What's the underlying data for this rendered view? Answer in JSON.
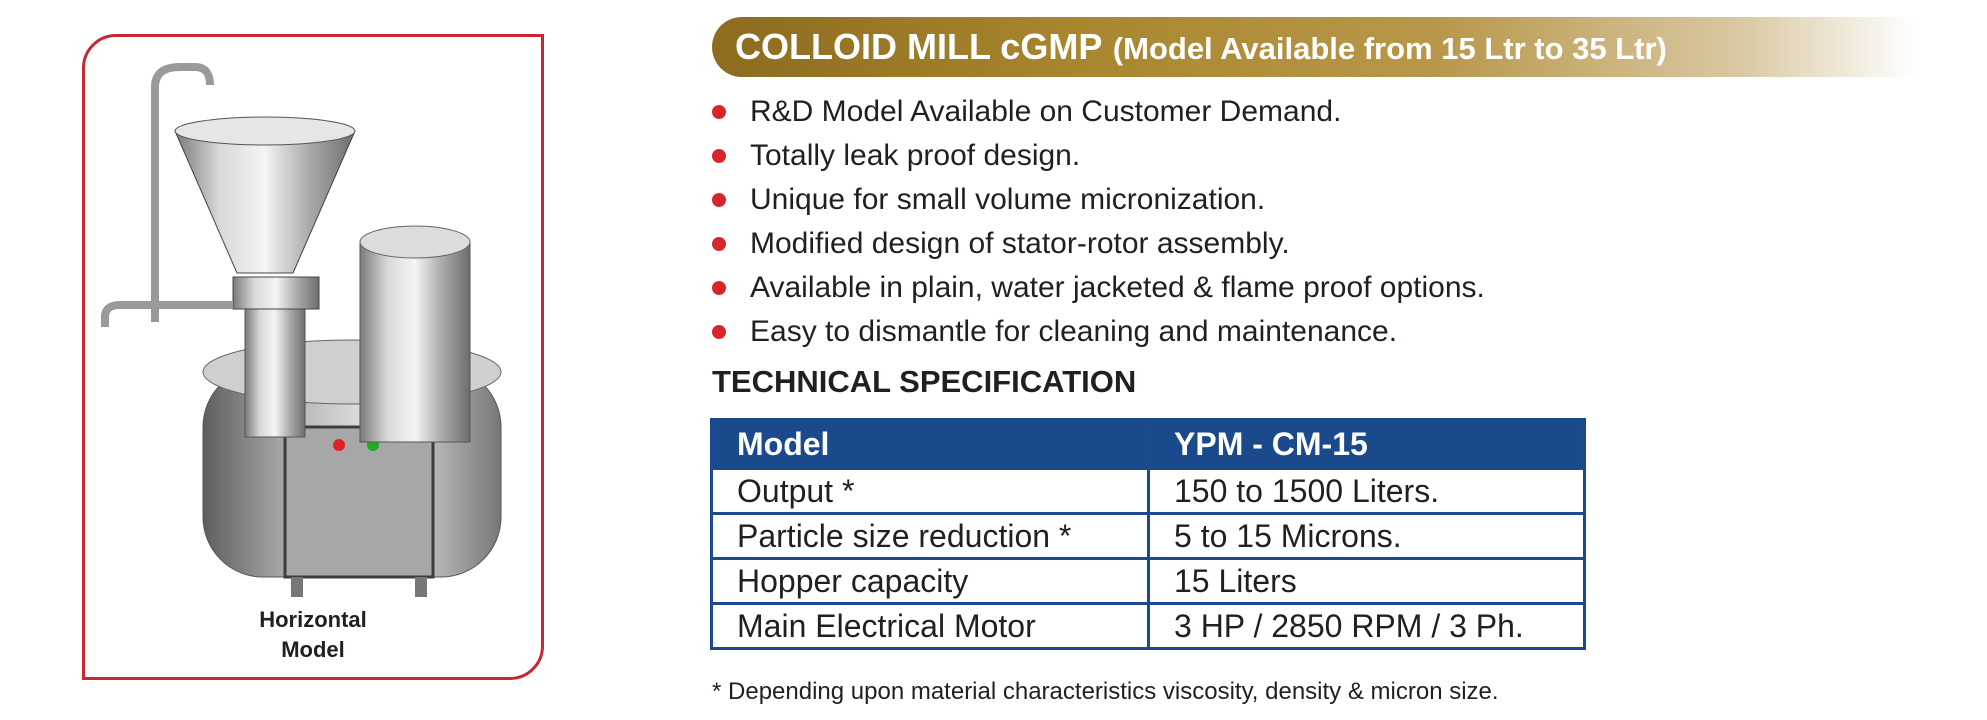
{
  "product_image": {
    "caption_line1": "Horizontal",
    "caption_line2": "Model"
  },
  "header": {
    "title": "COLLOID MILL cGMP",
    "subtitle": "(Model Available from 15 Ltr to 35 Ltr)"
  },
  "features": [
    "R&D Model Available on Customer Demand.",
    "Totally leak proof design.",
    "Unique for small volume micronization.",
    "Modified design of stator-rotor assembly.",
    "Available in plain, water jacketed & flame proof options.",
    "Easy to dismantle for cleaning and maintenance."
  ],
  "spec": {
    "heading": "TECHNICAL SPECIFICATION",
    "header": [
      "Model",
      "YPM - CM-15"
    ],
    "rows": [
      [
        "Output *",
        "150 to 1500 Liters."
      ],
      [
        "Particle size reduction *",
        "5 to 15 Microns."
      ],
      [
        "Hopper capacity",
        "15 Liters"
      ],
      [
        "Main Electrical Motor",
        "3 HP / 2850 RPM / 3 Ph."
      ]
    ]
  },
  "footnote": "* Depending upon material characteristics viscosity, density & micron size.",
  "colors": {
    "accent_red": "#d7262e",
    "title_gold": "#a8862e",
    "table_blue": "#1a4a8c"
  }
}
